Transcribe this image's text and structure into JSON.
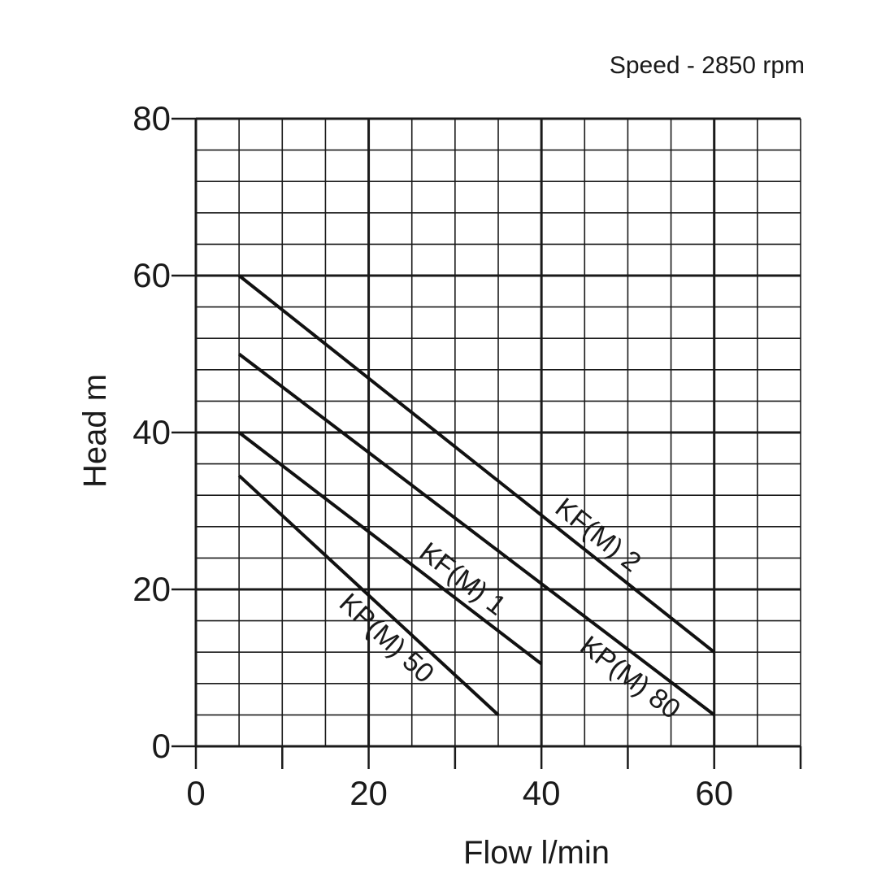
{
  "chart_data": {
    "type": "line",
    "title": "",
    "subtitle": "Speed - 2850 rpm",
    "xlabel": "Flow l/min",
    "ylabel": "Head m",
    "xlim": [
      0,
      70
    ],
    "ylim": [
      0,
      80
    ],
    "x_ticks": [
      "0",
      "20",
      "40",
      "60"
    ],
    "y_ticks": [
      "0",
      "20",
      "40",
      "60",
      "80"
    ],
    "grid": true,
    "series": [
      {
        "name": "KF(M) 2",
        "x": [
          5,
          60
        ],
        "y": [
          60,
          12
        ]
      },
      {
        "name": "KP(M) 80",
        "x": [
          5,
          60
        ],
        "y": [
          50,
          4
        ]
      },
      {
        "name": "KF(M) 1",
        "x": [
          5,
          40
        ],
        "y": [
          40,
          10.5
        ]
      },
      {
        "name": "KP(M) 50",
        "x": [
          5,
          35
        ],
        "y": [
          34.5,
          4
        ]
      }
    ]
  }
}
